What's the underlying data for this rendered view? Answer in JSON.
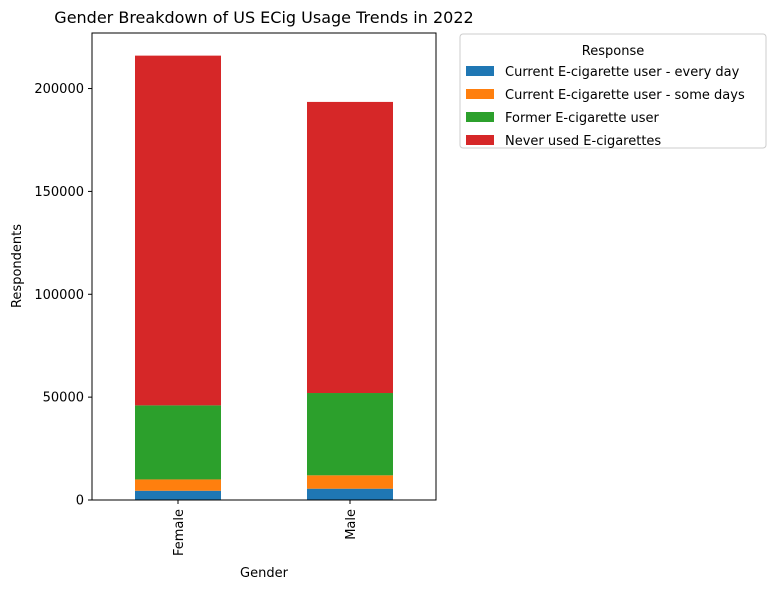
{
  "chart_data": {
    "type": "bar",
    "stacked": true,
    "title": "Gender Breakdown of US ECig Usage Trends in 2022",
    "xlabel": "Gender",
    "ylabel": "Respondents",
    "categories": [
      "Female",
      "Male"
    ],
    "series": [
      {
        "name": "Current E-cigarette user - every day",
        "values": [
          4500,
          5500
        ],
        "color": "#1f77b4"
      },
      {
        "name": "Current E-cigarette user - some days",
        "values": [
          5500,
          6500
        ],
        "color": "#ff7f0e"
      },
      {
        "name": "Former E-cigarette user",
        "values": [
          36000,
          40000
        ],
        "color": "#2ca02c"
      },
      {
        "name": "Never used E-cigarettes",
        "values": [
          170000,
          141500
        ],
        "color": "#d62728"
      }
    ],
    "ylim": [
      0,
      227000
    ],
    "yticks": [
      0,
      50000,
      100000,
      150000,
      200000
    ],
    "grid": false,
    "legend": {
      "title": "Response",
      "placement": "outside-top-right"
    }
  }
}
